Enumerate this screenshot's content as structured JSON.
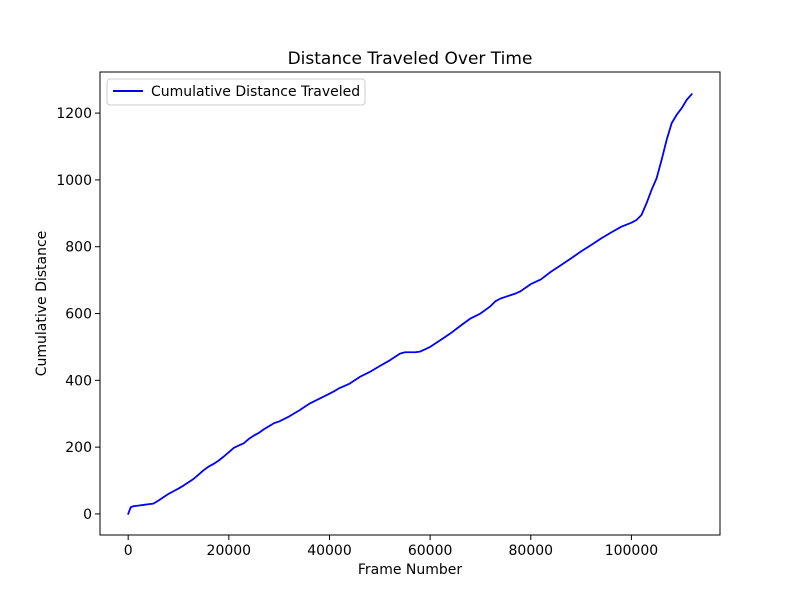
{
  "chart_data": {
    "type": "line",
    "title": "Distance Traveled Over Time",
    "xlabel": "Frame Number",
    "ylabel": "Cumulative Distance",
    "xlim": [
      -5600,
      117600
    ],
    "ylim": [
      -63,
      1323
    ],
    "xticks": [
      0,
      20000,
      40000,
      60000,
      80000,
      100000
    ],
    "yticks": [
      0,
      200,
      400,
      600,
      800,
      1000,
      1200
    ],
    "grid": false,
    "legend": {
      "placement": "top-left",
      "entries": [
        "Cumulative Distance Traveled"
      ]
    },
    "series": [
      {
        "name": "Cumulative Distance Traveled",
        "color": "#0000ff",
        "x": [
          0,
          500,
          1000,
          2000,
          3000,
          4000,
          5000,
          6000,
          7000,
          8000,
          9000,
          10000,
          11000,
          12000,
          13000,
          14000,
          15000,
          16000,
          17000,
          18000,
          19000,
          20000,
          21000,
          22000,
          23000,
          24000,
          25000,
          26000,
          27000,
          28000,
          29000,
          30000,
          32000,
          34000,
          36000,
          38000,
          40000,
          41000,
          42000,
          44000,
          46000,
          48000,
          50000,
          52000,
          54000,
          55000,
          56000,
          57000,
          58000,
          59000,
          60000,
          62000,
          64000,
          66000,
          68000,
          70000,
          72000,
          73000,
          74000,
          75000,
          76000,
          77000,
          78000,
          80000,
          82000,
          84000,
          86000,
          88000,
          90000,
          92000,
          94000,
          96000,
          98000,
          100000,
          101000,
          102000,
          103000,
          104000,
          105000,
          106000,
          107000,
          108000,
          109000,
          110000,
          111000,
          112000
        ],
        "values": [
          0,
          20,
          23,
          25,
          27,
          29,
          31,
          40,
          50,
          60,
          68,
          76,
          85,
          95,
          105,
          118,
          131,
          142,
          150,
          160,
          172,
          185,
          198,
          205,
          212,
          225,
          235,
          243,
          254,
          263,
          272,
          277,
          292,
          310,
          330,
          345,
          360,
          368,
          377,
          390,
          410,
          425,
          443,
          460,
          480,
          484,
          484,
          484,
          486,
          493,
          500,
          520,
          540,
          563,
          585,
          600,
          622,
          637,
          645,
          650,
          655,
          660,
          667,
          688,
          702,
          725,
          745,
          765,
          786,
          805,
          825,
          843,
          860,
          872,
          880,
          895,
          930,
          970,
          1005,
          1060,
          1120,
          1170,
          1195,
          1215,
          1240,
          1257
        ]
      }
    ]
  }
}
